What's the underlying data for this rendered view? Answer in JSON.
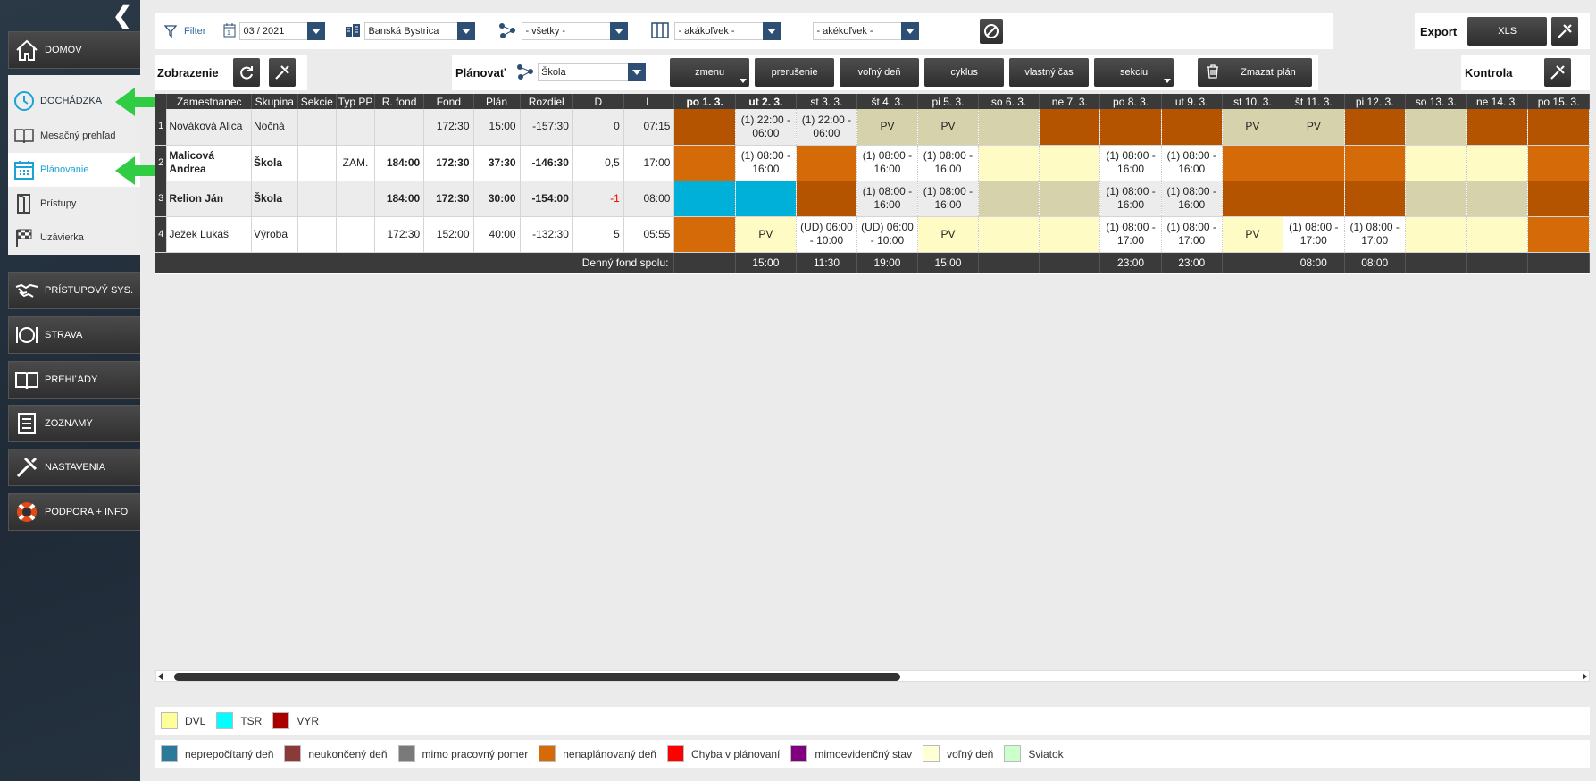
{
  "sidebar": {
    "items": [
      {
        "label": "DOMOV",
        "icon": "home-icon"
      },
      {
        "label": "DOCHÁDZKA",
        "icon": "clock-icon"
      },
      {
        "label": "PRÍSTUPOVÝ SYS.",
        "icon": "handshake-icon"
      },
      {
        "label": "STRAVA",
        "icon": "plate-icon"
      },
      {
        "label": "PREHĽADY",
        "icon": "book-icon"
      },
      {
        "label": "ZOZNAMY",
        "icon": "list-icon"
      },
      {
        "label": "NASTAVENIA",
        "icon": "tools-icon"
      },
      {
        "label": "PODPORA + INFO",
        "icon": "lifebuoy-icon"
      }
    ],
    "submenu": [
      {
        "label": "Mesačný prehľad",
        "icon": "open-book-icon"
      },
      {
        "label": "Plánovanie",
        "icon": "calendar-icon"
      },
      {
        "label": "Prístupy",
        "icon": "door-icon"
      },
      {
        "label": "Uzávierka",
        "icon": "checkered-flag-icon"
      }
    ]
  },
  "filter": {
    "label": "Filter",
    "month": "03 / 2021",
    "location": "Banská Bystrica",
    "section": "- všetky -",
    "column_filter": "- akákoľvek -",
    "other_filter": "- akékoľvek -"
  },
  "export": {
    "label": "Export",
    "xls": "XLS"
  },
  "display": {
    "label": "Zobrazenie"
  },
  "plan": {
    "label": "Plánovať",
    "group": "Škola",
    "buttons": [
      "zmenu",
      "prerušenie",
      "voľný deň",
      "cyklus",
      "vlastný čas",
      "sekciu"
    ],
    "delete": "Zmazať plán"
  },
  "control": {
    "label": "Kontrola"
  },
  "colors": {
    "orange": "#b55400",
    "orange_light": "#d46a08",
    "beige": "#d6d2ac",
    "yellow": "#fefbc4",
    "cyan": "#00b0d8",
    "white": "#ffffff",
    "gray": "#ececec"
  },
  "table": {
    "columns": [
      "",
      "Zamestnanec",
      "Skupina",
      "Sekcie",
      "Typ PP",
      "R. fond",
      "Fond",
      "Plán",
      "Rozdiel",
      "D",
      "L"
    ],
    "days": [
      "po 1. 3.",
      "ut 2. 3.",
      "st 3. 3.",
      "št 4. 3.",
      "pi 5. 3.",
      "so 6. 3.",
      "ne 7. 3.",
      "po 8. 3.",
      "ut 9. 3.",
      "st 10. 3.",
      "št 11. 3.",
      "pi 12. 3.",
      "so 13. 3.",
      "ne 14. 3.",
      "po 15. 3."
    ],
    "rows": [
      {
        "num": "1",
        "name": "Nováková Alica",
        "group": "Nočná",
        "section": "",
        "type": "",
        "rfond": "",
        "fond": "172:30",
        "plan": "15:00",
        "diff": "-157:30",
        "d": "0",
        "l": "07:15",
        "cells": [
          {
            "t": "",
            "c": "orange"
          },
          {
            "t": "(1) 22:00 - 06:00",
            "c": "gray"
          },
          {
            "t": "(1) 22:00 - 06:00",
            "c": "gray"
          },
          {
            "t": "PV",
            "c": "beige"
          },
          {
            "t": "PV",
            "c": "beige"
          },
          {
            "t": "",
            "c": "beige"
          },
          {
            "t": "",
            "c": "orange"
          },
          {
            "t": "",
            "c": "orange"
          },
          {
            "t": "",
            "c": "orange"
          },
          {
            "t": "PV",
            "c": "beige"
          },
          {
            "t": "PV",
            "c": "beige"
          },
          {
            "t": "",
            "c": "orange"
          },
          {
            "t": "",
            "c": "beige"
          },
          {
            "t": "",
            "c": "orange"
          },
          {
            "t": "",
            "c": "orange"
          }
        ]
      },
      {
        "num": "2",
        "name": "Malicová Andrea",
        "group": "Škola",
        "section": "",
        "type": "ZAM.",
        "rfond": "184:00",
        "fond": "172:30",
        "plan": "37:30",
        "diff": "-146:30",
        "d": "0,5",
        "l": "17:00",
        "cells": [
          {
            "t": "",
            "c": "orange_light"
          },
          {
            "t": "(1) 08:00 - 16:00",
            "c": "white"
          },
          {
            "t": "",
            "c": "orange_light"
          },
          {
            "t": "(1) 08:00 - 16:00",
            "c": "white"
          },
          {
            "t": "(1) 08:00 - 16:00",
            "c": "white"
          },
          {
            "t": "",
            "c": "yellow"
          },
          {
            "t": "",
            "c": "yellow"
          },
          {
            "t": "(1) 08:00 - 16:00",
            "c": "white"
          },
          {
            "t": "(1) 08:00 - 16:00",
            "c": "white"
          },
          {
            "t": "",
            "c": "orange_light"
          },
          {
            "t": "",
            "c": "orange_light"
          },
          {
            "t": "",
            "c": "orange_light"
          },
          {
            "t": "",
            "c": "yellow"
          },
          {
            "t": "",
            "c": "yellow"
          },
          {
            "t": "",
            "c": "orange_light"
          }
        ]
      },
      {
        "num": "3",
        "name": "Relion Ján",
        "group": "Škola",
        "section": "",
        "type": "",
        "rfond": "184:00",
        "fond": "172:30",
        "plan": "30:00",
        "diff": "-154:00",
        "d": "-1",
        "l": "08:00",
        "cells": [
          {
            "t": "",
            "c": "cyan"
          },
          {
            "t": "",
            "c": "cyan"
          },
          {
            "t": "",
            "c": "orange"
          },
          {
            "t": "(1) 08:00 - 16:00",
            "c": "gray"
          },
          {
            "t": "(1) 08:00 - 16:00",
            "c": "gray"
          },
          {
            "t": "",
            "c": "beige"
          },
          {
            "t": "",
            "c": "beige"
          },
          {
            "t": "(1) 08:00 - 16:00",
            "c": "gray"
          },
          {
            "t": "(1) 08:00 - 16:00",
            "c": "gray"
          },
          {
            "t": "",
            "c": "orange"
          },
          {
            "t": "",
            "c": "orange"
          },
          {
            "t": "",
            "c": "orange"
          },
          {
            "t": "",
            "c": "beige"
          },
          {
            "t": "",
            "c": "beige"
          },
          {
            "t": "",
            "c": "orange"
          }
        ]
      },
      {
        "num": "4",
        "name": "Ježek Lukáš",
        "group": "Výroba",
        "section": "",
        "type": "",
        "rfond": "172:30",
        "fond": "152:00",
        "plan": "40:00",
        "diff": "-132:30",
        "d": "5",
        "l": "05:55",
        "cells": [
          {
            "t": "",
            "c": "orange_light"
          },
          {
            "t": "PV",
            "c": "yellow"
          },
          {
            "t": "(UD) 06:00 - 10:00",
            "c": "white"
          },
          {
            "t": "(UD) 06:00 - 10:00",
            "c": "white"
          },
          {
            "t": "PV",
            "c": "yellow"
          },
          {
            "t": "",
            "c": "yellow"
          },
          {
            "t": "",
            "c": "yellow"
          },
          {
            "t": "(1) 08:00 - 17:00",
            "c": "white"
          },
          {
            "t": "(1) 08:00 - 17:00",
            "c": "white"
          },
          {
            "t": "PV",
            "c": "yellow"
          },
          {
            "t": "(1) 08:00 - 17:00",
            "c": "white"
          },
          {
            "t": "(1) 08:00 - 17:00",
            "c": "white"
          },
          {
            "t": "",
            "c": "yellow"
          },
          {
            "t": "",
            "c": "yellow"
          },
          {
            "t": "",
            "c": "orange_light"
          }
        ]
      }
    ],
    "sum_label": "Denný fond spolu:",
    "sums": [
      "",
      "15:00",
      "11:30",
      "19:00",
      "15:00",
      "",
      "",
      "23:00",
      "23:00",
      "",
      "08:00",
      "08:00",
      "",
      "",
      ""
    ]
  },
  "legend1": [
    {
      "label": "DVL",
      "color": "#ffff99"
    },
    {
      "label": "TSR",
      "color": "#00ffff"
    },
    {
      "label": "VYR",
      "color": "#aa0000"
    }
  ],
  "legend2": [
    {
      "label": "neprepočítaný deň",
      "color": "#2c7a9a"
    },
    {
      "label": "neukončený deň",
      "color": "#8b3a3a"
    },
    {
      "label": "mimo pracovný pomer",
      "color": "#7a7a7a"
    },
    {
      "label": "nenaplánovaný deň",
      "color": "#d46a08"
    },
    {
      "label": "Chyba v plánovaní",
      "color": "#ff0000"
    },
    {
      "label": "mimoevidenčný stav",
      "color": "#800080"
    },
    {
      "label": "voľný deň",
      "color": "#ffffd5"
    },
    {
      "label": "Sviatok",
      "color": "#ccffcc"
    }
  ]
}
